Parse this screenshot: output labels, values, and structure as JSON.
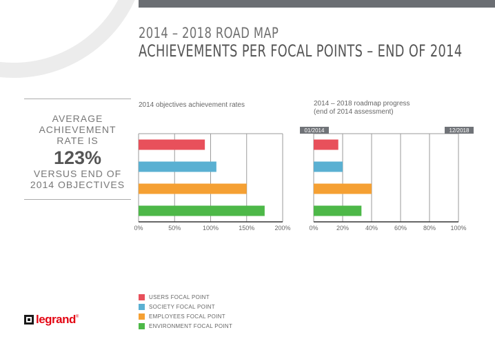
{
  "header": {
    "title_line1": "2014 – 2018 ROAD MAP",
    "title_line2": "ACHIEVEMENTS PER FOCAL POINTS – END OF 2014"
  },
  "kpi": {
    "pre": "AVERAGE ACHIEVEMENT RATE IS",
    "value": "123%",
    "post": "VERSUS END OF 2014 OBJECTIVES"
  },
  "colors": {
    "users": "#e8505b",
    "society": "#5ab0d2",
    "employees": "#f5a033",
    "environment": "#4db848"
  },
  "legend": [
    {
      "label": "USERS FOCAL POINT",
      "color": "#e8505b"
    },
    {
      "label": "SOCIETY FOCAL POINT",
      "color": "#5ab0d2"
    },
    {
      "label": "EMPLOYEES FOCAL POINT",
      "color": "#f5a033"
    },
    {
      "label": "ENVIRONMENT FOCAL POINT",
      "color": "#4db848"
    }
  ],
  "logo": {
    "text": "legrand"
  },
  "chart_data": [
    {
      "type": "bar",
      "orientation": "horizontal",
      "title": "2014 objectives achievement rates",
      "categories": [
        "USERS FOCAL POINT",
        "SOCIETY FOCAL POINT",
        "EMPLOYEES FOCAL POINT",
        "ENVIRONMENT FOCAL POINT"
      ],
      "values": [
        92,
        108,
        150,
        175
      ],
      "xlim": [
        0,
        200
      ],
      "ticks": [
        "0%",
        "50%",
        "100%",
        "150%",
        "200%"
      ],
      "grid": true
    },
    {
      "type": "bar",
      "orientation": "horizontal",
      "title": "2014 – 2018 roadmap progress",
      "subtitle": "(end of 2014 assessment)",
      "categories": [
        "USERS FOCAL POINT",
        "SOCIETY FOCAL POINT",
        "EMPLOYEES FOCAL POINT",
        "ENVIRONMENT FOCAL POINT"
      ],
      "values": [
        17,
        20,
        40,
        33
      ],
      "xlim": [
        0,
        100
      ],
      "ticks": [
        "0%",
        "20%",
        "40%",
        "60%",
        "80%",
        "100%"
      ],
      "start_label": "01/2014",
      "end_label": "12/2018",
      "grid": true
    }
  ]
}
